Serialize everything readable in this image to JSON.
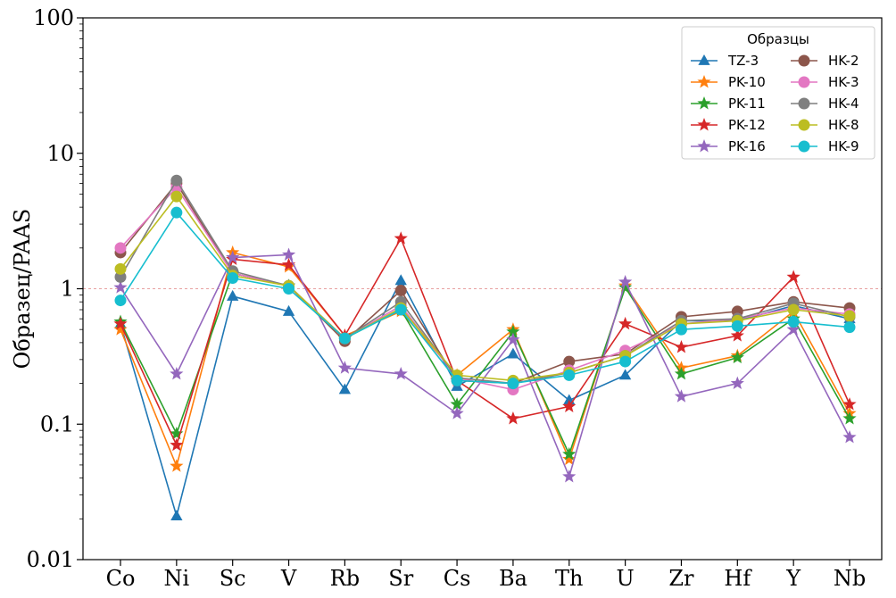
{
  "chart_data": {
    "type": "line",
    "yscale": "log",
    "ylim": [
      0.01,
      100
    ],
    "ylabel": "Образец/PAAS",
    "yticks": [
      0.01,
      0.1,
      1,
      10,
      100
    ],
    "ytick_labels": [
      "0.01",
      "0.1",
      "1",
      "10",
      "100"
    ],
    "categories": [
      "Co",
      "Ni",
      "Sc",
      "V",
      "Rb",
      "Sr",
      "Cs",
      "Ba",
      "Th",
      "U",
      "Zr",
      "Hf",
      "Y",
      "Nb"
    ],
    "reference_line": {
      "y": 1,
      "color": "#e8a0a0",
      "style": "dashed"
    },
    "legend": {
      "title": "Образцы",
      "placement": "top-right",
      "columns": 2
    },
    "grid": false,
    "series": [
      {
        "name": "TZ-3",
        "marker": "triangle",
        "color": "#1f77b4",
        "values": [
          0.55,
          0.021,
          0.88,
          0.68,
          0.18,
          1.15,
          0.19,
          0.33,
          0.15,
          0.23,
          0.58,
          0.58,
          0.75,
          0.6
        ]
      },
      {
        "name": "PK-10",
        "marker": "star",
        "color": "#ff7f0e",
        "values": [
          0.5,
          0.049,
          1.85,
          1.45,
          0.45,
          0.68,
          0.23,
          0.5,
          0.055,
          1.05,
          0.26,
          0.32,
          0.68,
          0.12
        ]
      },
      {
        "name": "PK-11",
        "marker": "star",
        "color": "#2ca02c",
        "values": [
          0.57,
          0.085,
          1.3,
          1.05,
          0.43,
          0.7,
          0.14,
          0.48,
          0.06,
          1.02,
          0.235,
          0.31,
          0.6,
          0.11
        ]
      },
      {
        "name": "PK-12",
        "marker": "star",
        "color": "#d62728",
        "values": [
          0.55,
          0.07,
          1.65,
          1.5,
          0.45,
          2.35,
          0.21,
          0.11,
          0.135,
          0.55,
          0.37,
          0.45,
          1.22,
          0.14
        ]
      },
      {
        "name": "PK-16",
        "marker": "star",
        "color": "#9467bd",
        "values": [
          1.02,
          0.235,
          1.7,
          1.78,
          0.26,
          0.235,
          0.12,
          0.42,
          0.041,
          1.12,
          0.16,
          0.2,
          0.5,
          0.08
        ]
      },
      {
        "name": "HK-2",
        "marker": "circle",
        "color": "#8c564b",
        "values": [
          1.85,
          6.0,
          1.3,
          1.05,
          0.41,
          0.97,
          0.21,
          0.2,
          0.29,
          0.33,
          0.62,
          0.68,
          0.8,
          0.72
        ]
      },
      {
        "name": "HK-3",
        "marker": "circle",
        "color": "#e377c2",
        "values": [
          2.0,
          5.6,
          1.3,
          1.05,
          0.43,
          0.75,
          0.22,
          0.18,
          0.25,
          0.35,
          0.55,
          0.6,
          0.72,
          0.65
        ]
      },
      {
        "name": "HK-4",
        "marker": "circle",
        "color": "#7f7f7f",
        "values": [
          1.22,
          6.3,
          1.35,
          1.05,
          0.43,
          0.8,
          0.22,
          0.2,
          0.24,
          0.32,
          0.58,
          0.6,
          0.78,
          0.62
        ]
      },
      {
        "name": "HK-8",
        "marker": "circle",
        "color": "#bcbd22",
        "values": [
          1.4,
          4.8,
          1.25,
          1.05,
          0.43,
          0.72,
          0.23,
          0.21,
          0.24,
          0.32,
          0.55,
          0.58,
          0.7,
          0.63
        ]
      },
      {
        "name": "HK-9",
        "marker": "circle",
        "color": "#17becf",
        "values": [
          0.82,
          3.65,
          1.2,
          1.0,
          0.43,
          0.7,
          0.21,
          0.2,
          0.23,
          0.29,
          0.5,
          0.53,
          0.57,
          0.52
        ]
      }
    ]
  }
}
